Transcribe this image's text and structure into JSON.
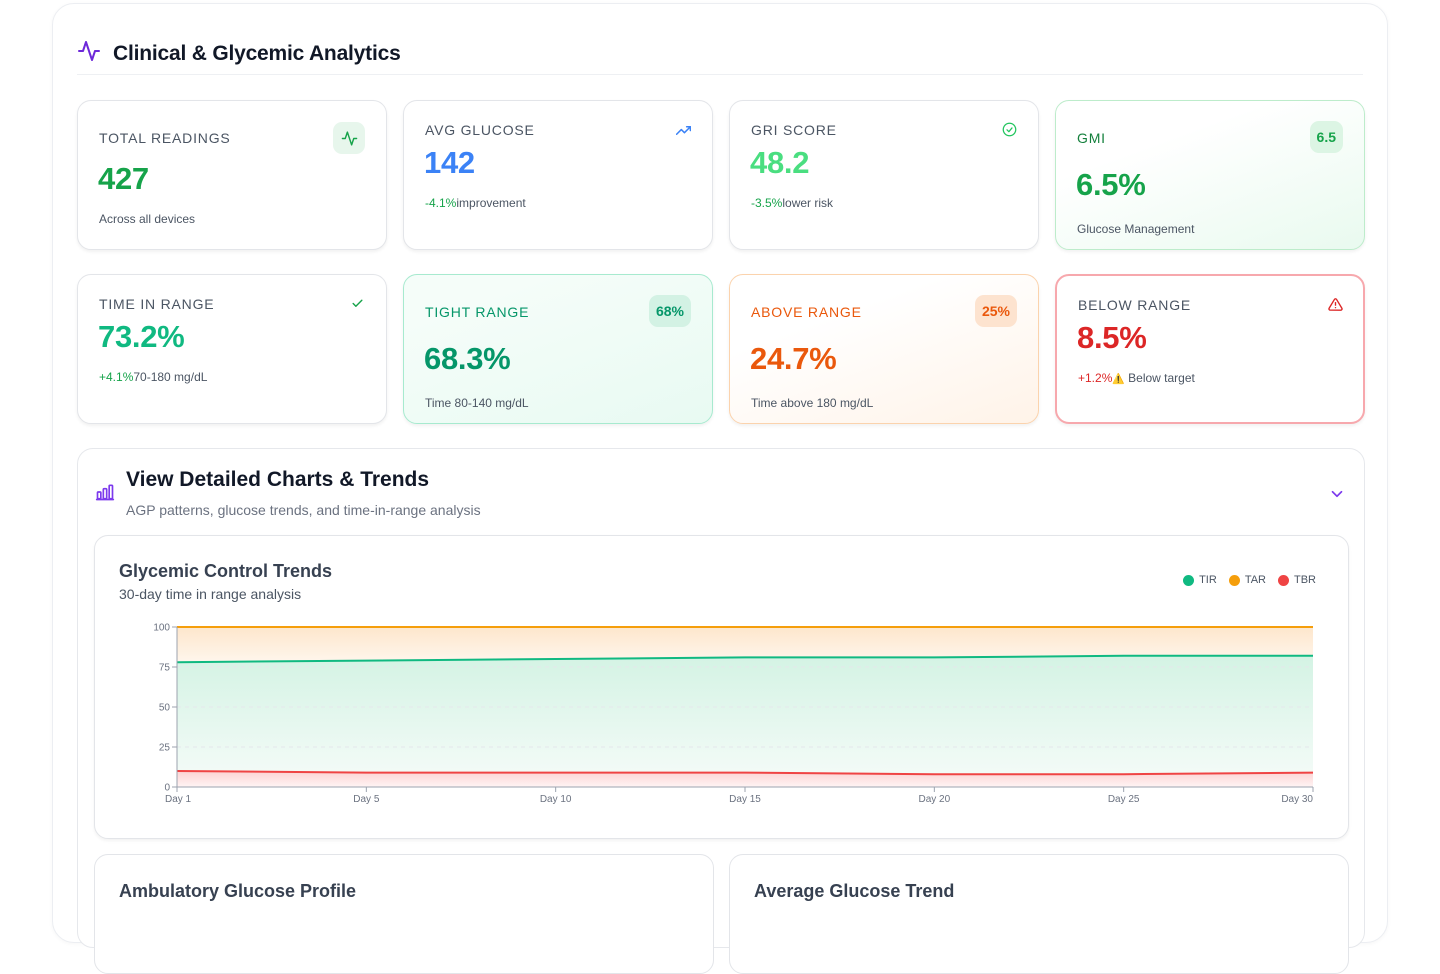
{
  "header": {
    "title": "Clinical & Glycemic Analytics"
  },
  "cards": {
    "total_readings": {
      "label": "TOTAL READINGS",
      "value": "427",
      "sub": "Across all devices"
    },
    "avg_glucose": {
      "label": "AVG GLUCOSE",
      "value": "142",
      "change": "-4.1%",
      "change_text": "improvement"
    },
    "gri_score": {
      "label": "GRI SCORE",
      "value": "48.2",
      "change": "-3.5%",
      "change_text": "lower risk"
    },
    "gmi": {
      "label": "GMI",
      "badge": "6.5",
      "value": "6.5%",
      "sub": "Glucose Management"
    },
    "time_in_range": {
      "label": "TIME IN RANGE",
      "value": "73.2%",
      "change": "+4.1%",
      "change_text": "70-180 mg/dL"
    },
    "tight_range": {
      "label": "TIGHT RANGE",
      "badge": "68%",
      "value": "68.3%",
      "sub": "Time 80-140 mg/dL"
    },
    "above_range": {
      "label": "ABOVE RANGE",
      "badge": "25%",
      "value": "24.7%",
      "sub": "Time above 180 mg/dL"
    },
    "below_range": {
      "label": "BELOW RANGE",
      "value": "8.5%",
      "change": "+1.2%",
      "warn": "⚠️",
      "change_text": " Below target"
    }
  },
  "charts_section": {
    "title": "View Detailed Charts & Trends",
    "subtitle": "AGP patterns, glucose trends, and time-in-range analysis"
  },
  "trend_chart": {
    "title": "Glycemic Control Trends",
    "subtitle": "30-day time in range analysis",
    "legend": [
      {
        "name": "TIR",
        "color": "#10b981"
      },
      {
        "name": "TAR",
        "color": "#f59e0b"
      },
      {
        "name": "TBR",
        "color": "#ef4444"
      }
    ]
  },
  "chart_data": {
    "type": "area",
    "title": "Glycemic Control Trends",
    "subtitle": "30-day time in range analysis",
    "x": [
      "Day 1",
      "Day 5",
      "Day 10",
      "Day 15",
      "Day 20",
      "Day 25",
      "Day 30"
    ],
    "ylim": [
      0,
      100
    ],
    "yticks": [
      0,
      25,
      50,
      75,
      100
    ],
    "series": [
      {
        "name": "TIR",
        "color": "#10b981",
        "values": [
          78,
          79,
          80,
          81,
          81,
          82,
          82
        ]
      },
      {
        "name": "TAR",
        "color": "#f59e0b",
        "values": [
          100,
          100,
          100,
          100,
          100,
          100,
          100
        ]
      },
      {
        "name": "TBR",
        "color": "#ef4444",
        "values": [
          10,
          9,
          9,
          9,
          8,
          8,
          9
        ]
      }
    ],
    "grid": true,
    "legend_position": "top-right"
  },
  "bottom_cards": {
    "agp_title": "Ambulatory Glucose Profile",
    "avg_trend_title": "Average Glucose Trend"
  },
  "colors": {
    "accent": "#7c3aed",
    "green": "#16a34a",
    "blue": "#3b82f6",
    "orange": "#ea580c",
    "red": "#dc2626"
  }
}
